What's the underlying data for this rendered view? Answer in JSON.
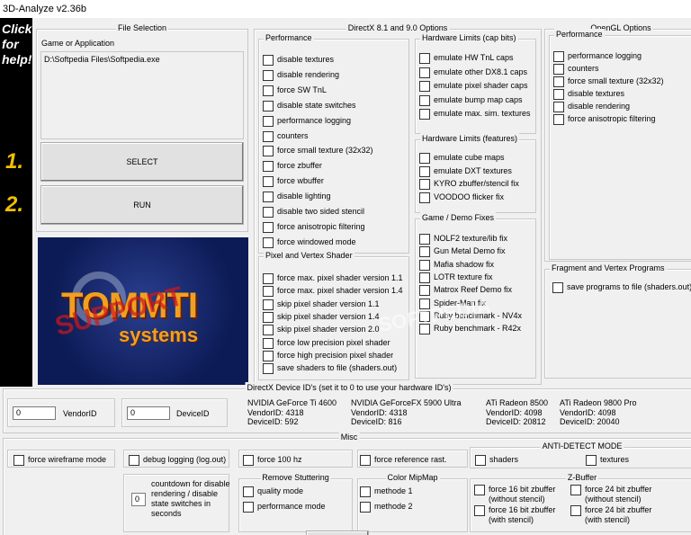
{
  "window": {
    "title": "3D-Analyze v2.36b"
  },
  "sidebar": {
    "help": "Click for help!",
    "step1": "1.",
    "step2": "2."
  },
  "file_selection": {
    "title": "File Selection",
    "label": "Game or Application",
    "path": "D:\\Softpedia Files\\Softpedia.exe",
    "select": "SELECT",
    "run": "RUN"
  },
  "logo": {
    "name": "TOMMTI",
    "sub": "systems",
    "stamp": "SUPPORT"
  },
  "watermark": "SOFTPEDIA",
  "directx": {
    "title": "DirectX 8.1 and 9.0 Options",
    "performance": {
      "title": "Performance",
      "items": [
        "disable textures",
        "disable rendering",
        "force SW TnL",
        "disable state switches",
        "performance logging",
        "counters",
        "force small texture (32x32)",
        "force zbuffer",
        "force wbuffer",
        "disable lighting",
        "disable two sided stencil",
        "force anisotropic filtering",
        "force windowed mode"
      ]
    },
    "shader": {
      "title": "Pixel and Vertex Shader",
      "items": [
        "force max. pixel shader version 1.1",
        "force max. pixel shader version 1.4",
        "skip pixel shader version 1.1",
        "skip pixel shader version 1.4",
        "skip pixel shader version 2.0",
        "force low precision pixel shader",
        "force high precision pixel shader",
        "save shaders to file (shaders.out)"
      ]
    },
    "caps": {
      "title": "Hardware Limits (cap bits)",
      "items": [
        "emulate HW TnL caps",
        "emulate other DX8.1 caps",
        "emulate pixel shader caps",
        "emulate bump map caps",
        "emulate max. sim. textures"
      ]
    },
    "features": {
      "title": "Hardware Limits (features)",
      "items": [
        "emulate cube maps",
        "emulate DXT textures",
        "KYRO zbuffer/stencil fix",
        "VOODOO flicker fix"
      ]
    },
    "fixes": {
      "title": "Game / Demo Fixes",
      "items": [
        "NOLF2 texture/lib fix",
        "Gun Metal Demo fix",
        "Mafia shadow fix",
        "LOTR texture fix",
        "Matrox Reef Demo fix",
        "Spider-Man fix",
        "Ruby benchmark - NV4x",
        "Ruby benchmark - R42x"
      ]
    }
  },
  "opengl": {
    "title": "OpenGL Options",
    "performance": {
      "title": "Performance",
      "items": [
        "performance logging",
        "counters",
        "force small texture (32x32)",
        "disable textures",
        "disable rendering",
        "force anisotropic filtering"
      ]
    },
    "programs": {
      "title": "Fragment and Vertex Programs",
      "items": [
        "save programs to file (shaders.out)"
      ]
    }
  },
  "device_ids": {
    "title": "DirectX Device ID's (set it to 0 to use your hardware ID's)",
    "vendor_value": "0",
    "vendor_label": "VendorID",
    "device_value": "0",
    "device_label": "DeviceID",
    "cards": [
      {
        "name": "NVIDIA GeForce Ti 4600",
        "vendor": "VendorID: 4318",
        "device": "DeviceID: 592"
      },
      {
        "name": "NVIDIA GeForceFX 5900 Ultra",
        "vendor": "VendorID: 4318",
        "device": "DeviceID: 816"
      },
      {
        "name": "ATi Radeon 8500",
        "vendor": "VendorID: 4098",
        "device": "DeviceID: 20812"
      },
      {
        "name": "ATi Radeon 9800 Pro",
        "vendor": "VendorID: 4098",
        "device": "DeviceID: 20040"
      }
    ]
  },
  "misc": {
    "title": "Misc",
    "wireframe": "force wireframe mode",
    "debug": "debug logging (log.out)",
    "hz": "force 100 hz",
    "refrast": "force reference rast.",
    "anti_detect": {
      "title": "ANTI-DETECT MODE",
      "items": [
        "shaders",
        "textures"
      ]
    },
    "countdown": {
      "value": "0",
      "label": "countdown for disable rendering / disable state switches in seconds"
    },
    "stutter": {
      "title": "Remove Stuttering",
      "items": [
        "quality mode",
        "performance mode"
      ]
    },
    "mipmap": {
      "title": "Color MipMap",
      "items": [
        "methode 1",
        "methode 2"
      ]
    },
    "zbuffer": {
      "title": "Z-Buffer",
      "items": [
        "force 16 bit zbuffer (without stencil)",
        "force 24 bit zbuffer (without stencil)",
        "force 16 bit zbuffer (with stencil)",
        "force 24 bit zbuffer (with stencil)"
      ]
    }
  }
}
